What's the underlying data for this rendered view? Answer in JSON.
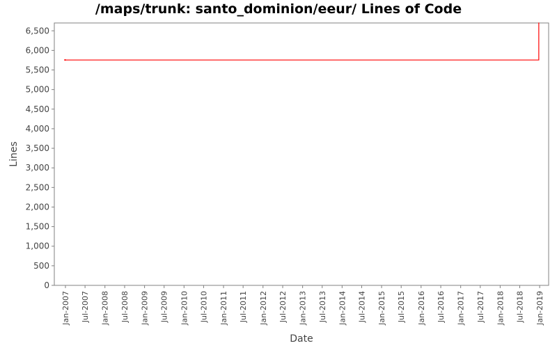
{
  "chart_data": {
    "type": "line",
    "title": "/maps/trunk: santo_dominion/eeur/ Lines of Code",
    "xlabel": "Date",
    "ylabel": "Lines",
    "ylim": [
      0,
      6700
    ],
    "xlim": [
      "2006-09-20",
      "2019-03-25"
    ],
    "yticks": [
      0,
      500,
      1000,
      1500,
      2000,
      2500,
      3000,
      3500,
      4000,
      4500,
      5000,
      5500,
      6000,
      6500
    ],
    "ytick_labels": [
      "0",
      "500",
      "1,000",
      "1,500",
      "2,000",
      "2,500",
      "3,000",
      "3,500",
      "4,000",
      "4,500",
      "5,000",
      "5,500",
      "6,000",
      "6,500"
    ],
    "xticks": [
      "2007-01-01",
      "2007-07-01",
      "2008-01-01",
      "2008-07-01",
      "2009-01-01",
      "2009-07-01",
      "2010-01-01",
      "2010-07-01",
      "2011-01-01",
      "2011-07-01",
      "2012-01-01",
      "2012-07-01",
      "2013-01-01",
      "2013-07-01",
      "2014-01-01",
      "2014-07-01",
      "2015-01-01",
      "2015-07-01",
      "2016-01-01",
      "2016-07-01",
      "2017-01-01",
      "2017-07-01",
      "2018-01-01",
      "2018-07-01",
      "2019-01-01"
    ],
    "xtick_labels": [
      "Jan-2007",
      "Jul-2007",
      "Jan-2008",
      "Jul-2008",
      "Jan-2009",
      "Jul-2009",
      "Jan-2010",
      "Jul-2010",
      "Jan-2011",
      "Jul-2011",
      "Jan-2012",
      "Jul-2012",
      "Jan-2013",
      "Jul-2013",
      "Jan-2014",
      "Jul-2014",
      "Jan-2015",
      "Jul-2015",
      "Jan-2016",
      "Jul-2016",
      "Jan-2017",
      "Jul-2017",
      "Jan-2018",
      "Jul-2018",
      "Jan-2019"
    ],
    "grid": false,
    "series": [
      {
        "color": "#ff0000",
        "points": [
          [
            "2006-12-28",
            5755
          ],
          [
            "2018-12-24",
            5755
          ],
          [
            "2018-12-24",
            6710
          ]
        ]
      }
    ]
  }
}
